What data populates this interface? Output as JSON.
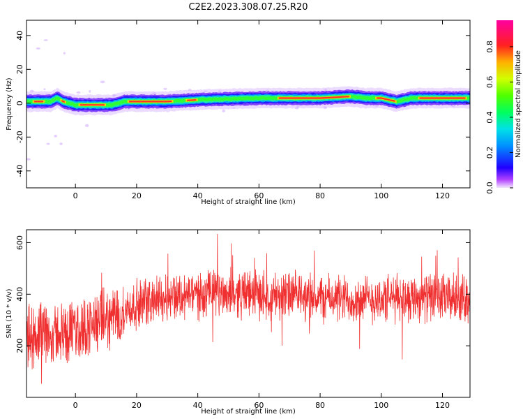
{
  "chart_data": [
    {
      "type": "heatmap",
      "title": "C2E2.2023.308.07.25.R20",
      "xlabel": "Height of straight line (km)",
      "ylabel": "Frequency (Hz)",
      "xlim": [
        -16,
        129
      ],
      "ylim": [
        -50,
        49
      ],
      "xticks": [
        0,
        20,
        40,
        60,
        80,
        100,
        120
      ],
      "yticks": [
        -40,
        -20,
        0,
        20,
        40
      ],
      "colorbar": {
        "label": "Normalized spectral amplitude",
        "range": [
          0,
          0.95
        ],
        "ticks": [
          "0.0",
          "0.2",
          "0.4",
          "0.6",
          "0.8"
        ],
        "colormap": "gist_ncar"
      },
      "ridge": {
        "description_points_x": [
          -16,
          -8,
          -6,
          -4,
          0,
          5,
          12,
          16,
          20,
          30,
          40,
          60,
          80,
          90,
          95,
          100,
          105,
          110,
          120,
          129
        ],
        "description_points_y": [
          1,
          1,
          3,
          1,
          -1,
          -1,
          -1,
          1,
          1,
          1,
          2,
          3,
          3,
          4,
          3,
          3,
          1,
          3,
          3,
          3
        ],
        "peak_color": "#ff2a2a"
      }
    },
    {
      "type": "line",
      "xlabel": "Height of straight line (km)",
      "ylabel": "SNR (10 * v/v)",
      "xlim": [
        -16,
        129
      ],
      "ylim": [
        0,
        650
      ],
      "xticks": [
        0,
        20,
        40,
        60,
        80,
        100,
        120
      ],
      "yticks": [
        200,
        400,
        600
      ],
      "series": [
        {
          "color": "#f03030",
          "trend_x": [
            -16,
            -5,
            0,
            10,
            20,
            30,
            40,
            50,
            60,
            70,
            80,
            90,
            100,
            110,
            120,
            129
          ],
          "trend_y": [
            240,
            250,
            260,
            300,
            360,
            390,
            400,
            405,
            400,
            395,
            385,
            380,
            380,
            390,
            385,
            385
          ]
        }
      ]
    }
  ]
}
